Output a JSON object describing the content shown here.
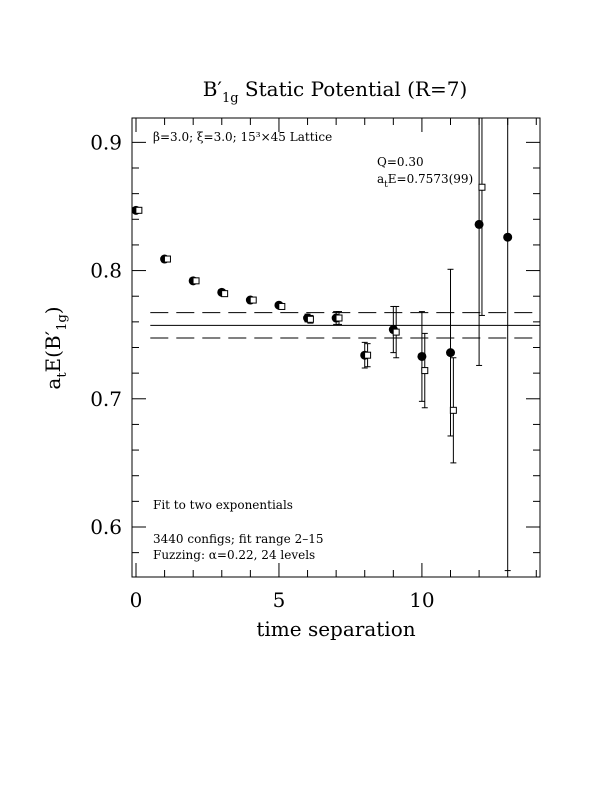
{
  "chart_data": {
    "type": "errorbar",
    "title": {
      "main": "B′",
      "sub": "1g",
      "rest": " Static Potential (R=7)"
    },
    "xlabel": "time separation",
    "ylabel": {
      "a": "a",
      "asub": "t",
      "mid": "E(B′",
      "sub": "1g",
      "end": ")"
    },
    "xlim": [
      -0.14,
      14.13
    ],
    "ylim": [
      0.561,
      0.919
    ],
    "xticks": [
      0,
      5,
      10
    ],
    "yticks": [
      0.6,
      0.7,
      0.8,
      0.9
    ],
    "xminorticks": [
      1,
      2,
      3,
      4,
      6,
      7,
      8,
      9,
      11,
      12,
      13,
      14
    ],
    "yminorticks": [
      0.58,
      0.62,
      0.64,
      0.66,
      0.68,
      0.72,
      0.74,
      0.76,
      0.78,
      0.82,
      0.84,
      0.86,
      0.88
    ],
    "x": [
      0,
      1,
      2,
      3,
      4,
      5,
      6,
      7,
      8,
      9,
      10,
      11,
      12,
      13
    ],
    "series": [
      {
        "marker": "circle",
        "color": "#000000",
        "offset": 0,
        "values": [
          0.847,
          0.809,
          0.792,
          0.783,
          0.777,
          0.773,
          0.763,
          0.763,
          0.734,
          0.754,
          0.733,
          0.736,
          0.836,
          0.826
        ],
        "errors": [
          0.002,
          0.002,
          0.002,
          0.002,
          0.002,
          0.002,
          0.003,
          0.005,
          0.01,
          0.018,
          0.035,
          0.065,
          0.11,
          0.26
        ]
      },
      {
        "marker": "square",
        "color": "#000000",
        "offset": 0.1,
        "values": [
          0.847,
          0.809,
          0.792,
          0.782,
          0.777,
          0.772,
          0.762,
          0.763,
          0.734,
          0.752,
          0.722,
          0.691,
          0.865,
          null
        ],
        "errors": [
          0.002,
          0.002,
          0.002,
          0.002,
          0.002,
          0.002,
          0.003,
          0.005,
          0.009,
          0.02,
          0.029,
          0.041,
          0.1,
          null
        ]
      }
    ],
    "fit": {
      "value": 0.7573,
      "lower": 0.7474,
      "upper": 0.7672,
      "xrange": [
        0.5,
        14.13
      ]
    },
    "annotations": {
      "lattice": "β=3.0; ξ=3.0; 15³×45 Lattice",
      "q": "Q=0.30",
      "energy": {
        "a": "a",
        "sub": "t",
        "rest": "E=0.7573(99)"
      },
      "fitnote": "Fit to two exponentials",
      "configs": "3440 configs; fit range 2–15",
      "fuzzing": "Fuzzing: α=0.22, 24 levels"
    }
  }
}
